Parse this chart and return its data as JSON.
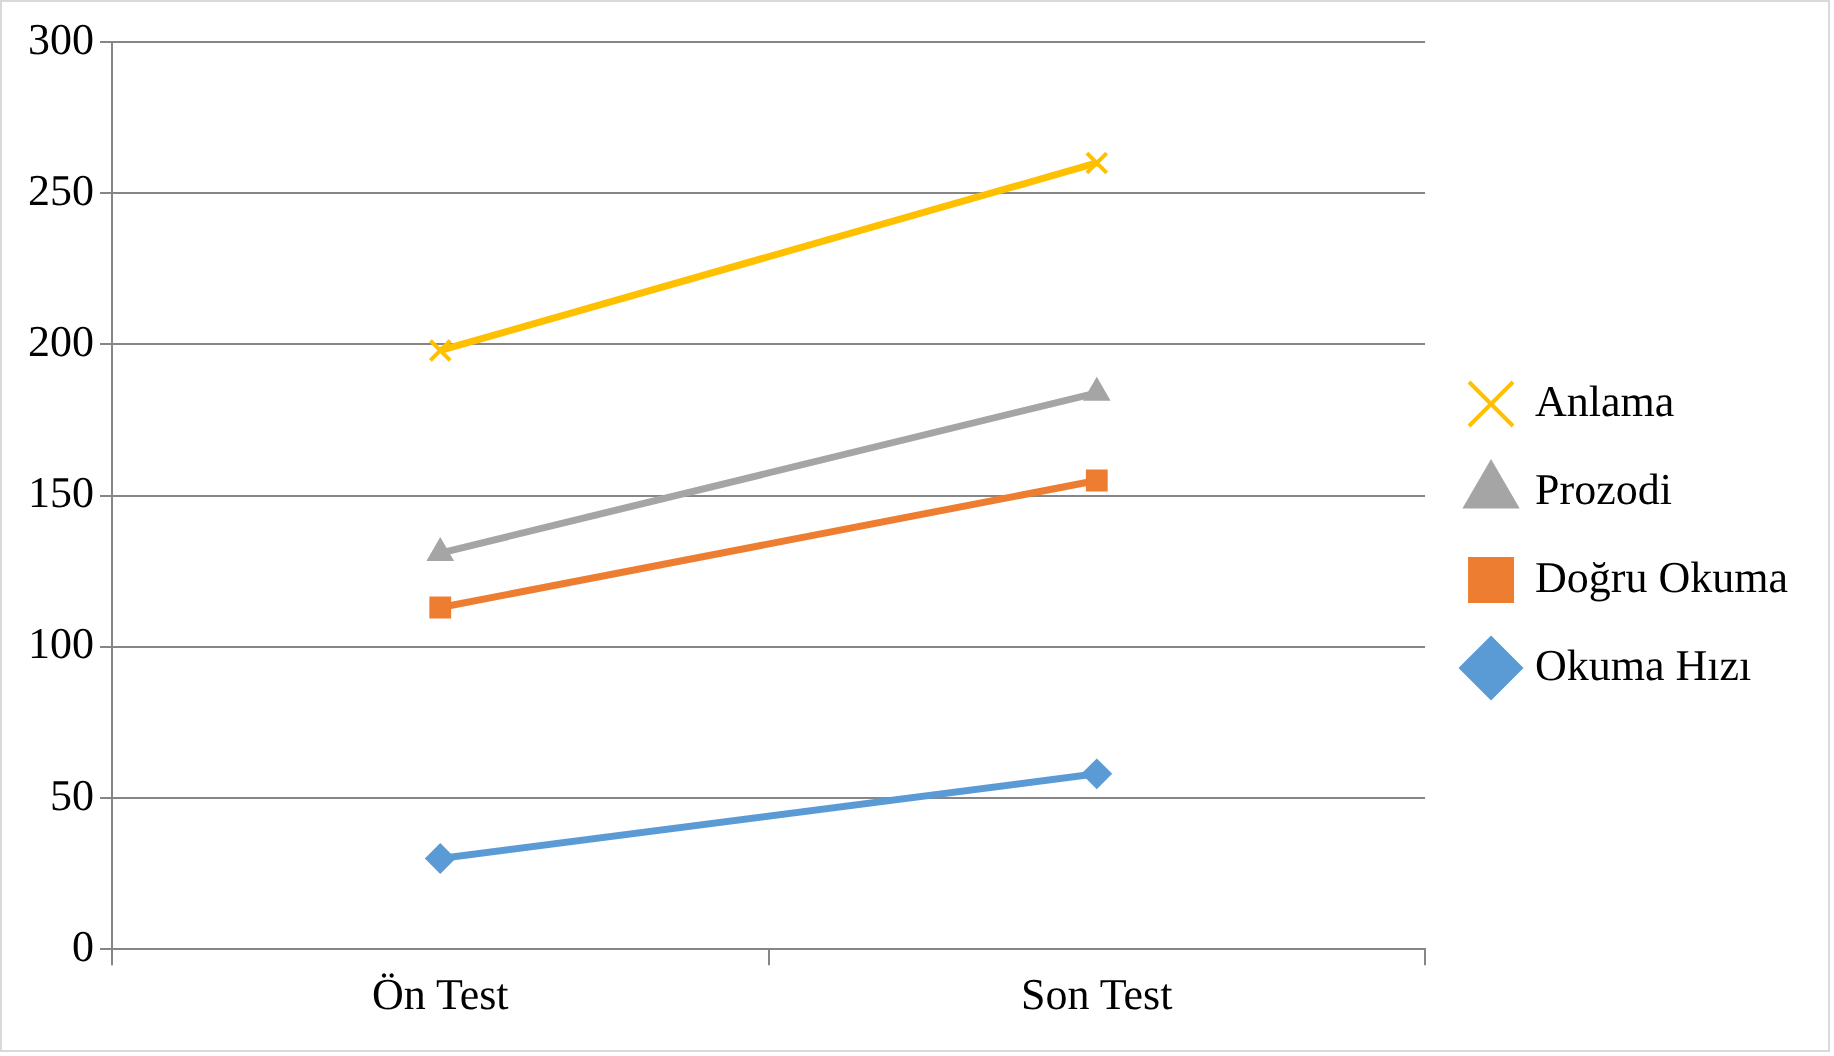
{
  "chart_data": {
    "type": "line",
    "categories": [
      "Ön Test",
      "Son Test"
    ],
    "series": [
      {
        "name": "Anlama",
        "color": "#ffc000",
        "marker": "cross",
        "values": [
          198,
          260
        ]
      },
      {
        "name": "Prozodi",
        "color": "#a5a5a5",
        "marker": "triangle",
        "values": [
          131,
          184
        ]
      },
      {
        "name": "Doğru Okuma",
        "color": "#ed7d31",
        "marker": "square",
        "values": [
          113,
          155
        ]
      },
      {
        "name": "Okuma Hızı",
        "color": "#5b9bd5",
        "marker": "diamond",
        "values": [
          30,
          58
        ]
      }
    ],
    "ylim": [
      0,
      300
    ],
    "yticks": [
      0,
      50,
      100,
      150,
      200,
      250,
      300
    ],
    "grid": "y",
    "legend": "right",
    "line_style": "solid"
  }
}
